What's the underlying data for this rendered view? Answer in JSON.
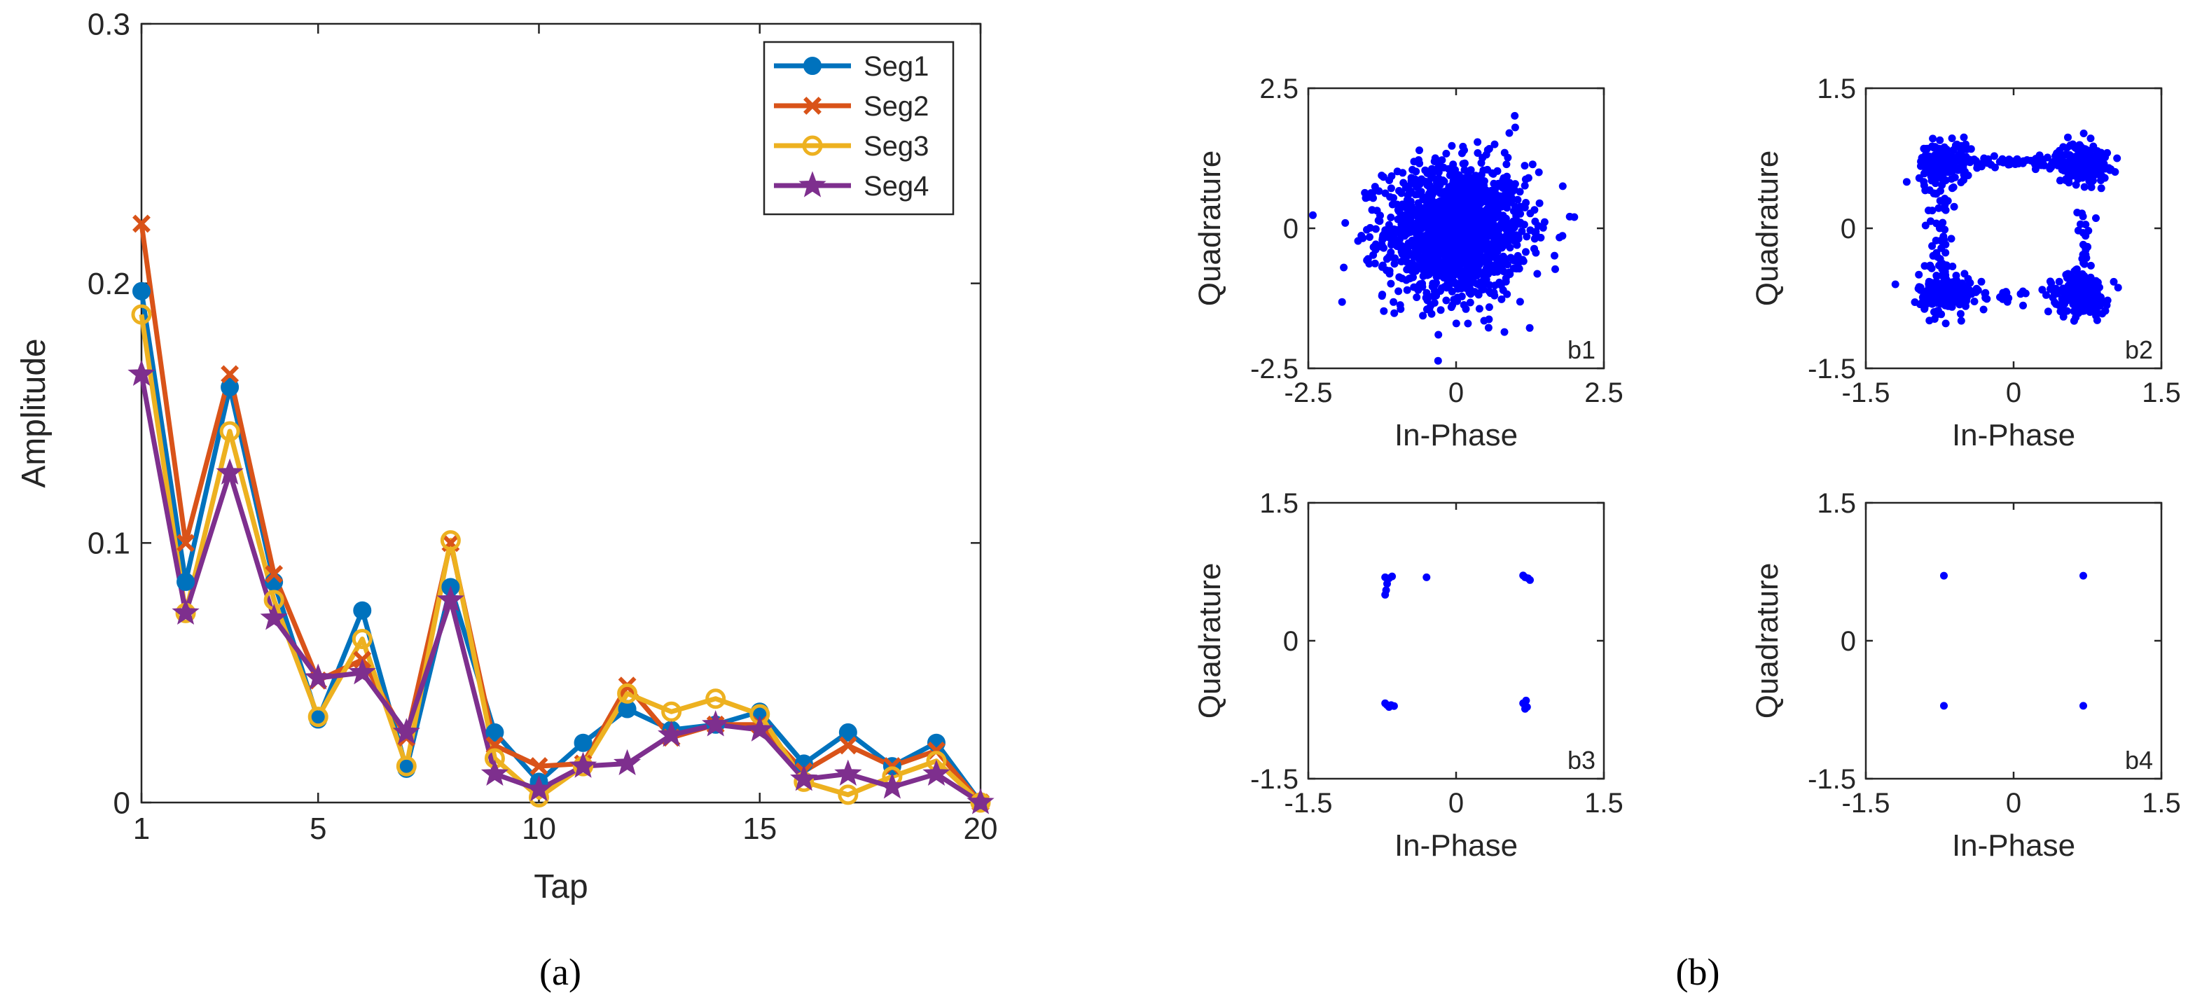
{
  "figure": {
    "panel_a_caption": "(a)",
    "panel_b_caption": "(b)"
  },
  "colors": {
    "seg1": "#0072BD",
    "seg2": "#D95319",
    "seg3": "#EDB120",
    "seg4": "#7E2F8E",
    "scatter": "#0000FF",
    "axis": "#262626"
  },
  "chart_data": [
    {
      "id": "a",
      "type": "line",
      "title": "",
      "xlabel": "Tap",
      "ylabel": "Amplitude",
      "xlim": [
        1,
        20
      ],
      "ylim": [
        0,
        0.3
      ],
      "xticks": [
        1,
        5,
        10,
        15,
        20
      ],
      "yticks": [
        0,
        0.1,
        0.2,
        0.3
      ],
      "ytick_labels": [
        "0",
        "0.1",
        "0.2",
        "0.3"
      ],
      "legend_position": "top-right",
      "x": [
        1,
        2,
        3,
        4,
        5,
        6,
        7,
        8,
        9,
        10,
        11,
        12,
        13,
        14,
        15,
        16,
        17,
        18,
        19,
        20
      ],
      "series": [
        {
          "name": "Seg1",
          "marker": "circle-filled",
          "values": [
            0.197,
            0.085,
            0.16,
            0.085,
            0.032,
            0.074,
            0.013,
            0.083,
            0.027,
            0.008,
            0.023,
            0.036,
            0.028,
            0.03,
            0.035,
            0.015,
            0.027,
            0.014,
            0.023,
            0.0
          ]
        },
        {
          "name": "Seg2",
          "marker": "x",
          "values": [
            0.223,
            0.1,
            0.165,
            0.088,
            0.047,
            0.055,
            0.025,
            0.1,
            0.022,
            0.014,
            0.015,
            0.045,
            0.025,
            0.03,
            0.03,
            0.012,
            0.022,
            0.014,
            0.02,
            0.0
          ]
        },
        {
          "name": "Seg3",
          "marker": "circle-open",
          "values": [
            0.188,
            0.073,
            0.143,
            0.078,
            0.033,
            0.063,
            0.014,
            0.101,
            0.017,
            0.002,
            0.014,
            0.042,
            0.035,
            0.04,
            0.034,
            0.008,
            0.003,
            0.01,
            0.016,
            0.0
          ]
        },
        {
          "name": "Seg4",
          "marker": "star",
          "values": [
            0.165,
            0.073,
            0.127,
            0.071,
            0.048,
            0.05,
            0.027,
            0.078,
            0.011,
            0.005,
            0.014,
            0.015,
            0.026,
            0.03,
            0.028,
            0.009,
            0.011,
            0.006,
            0.011,
            0.0
          ]
        }
      ]
    },
    {
      "id": "b1",
      "type": "scatter",
      "label": "b1",
      "xlabel": "In-Phase",
      "ylabel": "Quadrature",
      "xlim": [
        -2.5,
        2.5
      ],
      "ylim": [
        -2.5,
        2.5
      ],
      "xticks": [
        -2.5,
        0,
        2.5
      ],
      "yticks": [
        -2.5,
        0,
        2.5
      ],
      "xtick_labels": [
        "-2.5",
        "0",
        "2.5"
      ],
      "ytick_labels": [
        "-2.5",
        "0",
        "2.5"
      ],
      "distribution": "gaussian cloud centered at (0, -0.05), sigma 0.6, 1500 points",
      "points": [
        [
          -0.2,
          0.1
        ],
        [
          0.3,
          -0.4
        ],
        [
          1.0,
          1.8
        ],
        [
          0.9,
          1.7
        ],
        [
          -1.9,
          -0.7
        ],
        [
          2.0,
          0.2
        ],
        [
          -0.3,
          -1.9
        ],
        [
          0.2,
          -1.7
        ],
        [
          1.4,
          1.0
        ]
      ]
    },
    {
      "id": "b2",
      "type": "scatter",
      "label": "b2",
      "xlabel": "In-Phase",
      "ylabel": "Quadrature",
      "xlim": [
        -1.5,
        1.5
      ],
      "ylim": [
        -1.5,
        1.5
      ],
      "xticks": [
        -1.5,
        0,
        1.5
      ],
      "yticks": [
        -1.5,
        0,
        1.5
      ],
      "xtick_labels": [
        "-1.5",
        "0",
        "1.5"
      ],
      "ytick_labels": [
        "-1.5",
        "0",
        "1.5"
      ],
      "distribution": "four QPSK clusters at (+-0.7, +-0.7), sigma 0.13, with transition points between them",
      "points": [
        [
          -0.7,
          0.7
        ],
        [
          0.7,
          0.7
        ],
        [
          -0.7,
          -0.7
        ],
        [
          0.7,
          -0.7
        ],
        [
          -0.3,
          0.75
        ],
        [
          0.1,
          0.72
        ],
        [
          -0.75,
          0.0
        ],
        [
          0.75,
          -0.2
        ],
        [
          -1.2,
          -0.6
        ],
        [
          1.05,
          0.75
        ]
      ]
    },
    {
      "id": "b3",
      "type": "scatter",
      "label": "b3",
      "xlabel": "In-Phase",
      "ylabel": "Quadrature",
      "xlim": [
        -1.5,
        1.5
      ],
      "ylim": [
        -1.5,
        1.5
      ],
      "xticks": [
        -1.5,
        0,
        1.5
      ],
      "yticks": [
        -1.5,
        0,
        1.5
      ],
      "xtick_labels": [
        "-1.5",
        "0",
        "1.5"
      ],
      "ytick_labels": [
        "-1.5",
        "0",
        "1.5"
      ],
      "points": [
        [
          -0.72,
          0.69
        ],
        [
          -0.68,
          0.68
        ],
        [
          -0.65,
          0.7
        ],
        [
          -0.7,
          0.62
        ],
        [
          -0.71,
          0.55
        ],
        [
          -0.72,
          0.5
        ],
        [
          -0.3,
          0.69
        ],
        [
          0.7,
          0.69
        ],
        [
          0.68,
          0.71
        ],
        [
          0.73,
          0.68
        ],
        [
          0.75,
          0.66
        ],
        [
          -0.7,
          -0.7
        ],
        [
          -0.68,
          -0.72
        ],
        [
          -0.66,
          -0.7
        ],
        [
          -0.72,
          -0.68
        ],
        [
          -0.63,
          -0.71
        ],
        [
          0.7,
          -0.7
        ],
        [
          0.72,
          -0.72
        ],
        [
          0.68,
          -0.68
        ],
        [
          0.71,
          -0.65
        ],
        [
          0.7,
          -0.74
        ]
      ]
    },
    {
      "id": "b4",
      "type": "scatter",
      "label": "b4",
      "xlabel": "In-Phase",
      "ylabel": "Quadrature",
      "xlim": [
        -1.5,
        1.5
      ],
      "ylim": [
        -1.5,
        1.5
      ],
      "xticks": [
        -1.5,
        0,
        1.5
      ],
      "yticks": [
        -1.5,
        0,
        1.5
      ],
      "xtick_labels": [
        "-1.5",
        "0",
        "1.5"
      ],
      "ytick_labels": [
        "-1.5",
        "0",
        "1.5"
      ],
      "points": [
        [
          -0.707,
          0.707
        ],
        [
          0.707,
          0.707
        ],
        [
          -0.707,
          -0.707
        ],
        [
          0.707,
          -0.707
        ]
      ]
    }
  ]
}
